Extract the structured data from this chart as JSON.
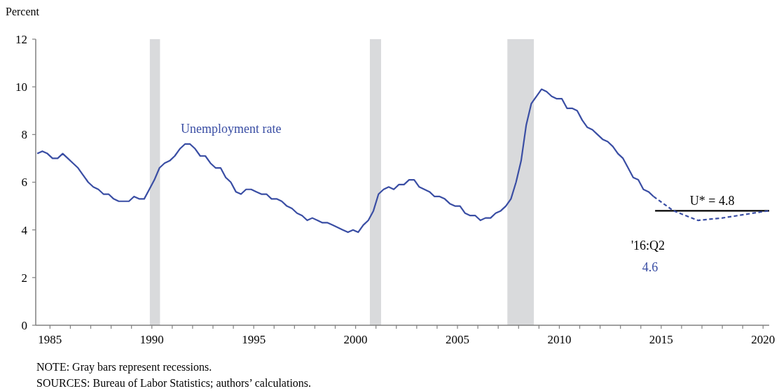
{
  "chart_data": {
    "type": "line",
    "ylabel": "Percent",
    "xlim": [
      1984.3,
      2020.3
    ],
    "ylim": [
      0,
      12
    ],
    "yticks": [
      0,
      2,
      4,
      6,
      8,
      10,
      12
    ],
    "xticks": [
      1985,
      {
        "value": 1986,
        "label": null
      },
      {
        "value": 1987,
        "label": null
      },
      {
        "value": 1988,
        "label": null
      },
      {
        "value": 1989,
        "label": null
      },
      1990,
      {
        "value": 1991,
        "label": null
      },
      {
        "value": 1992,
        "label": null
      },
      {
        "value": 1993,
        "label": null
      },
      {
        "value": 1994,
        "label": null
      },
      1995,
      {
        "value": 1996,
        "label": null
      },
      {
        "value": 1997,
        "label": null
      },
      {
        "value": 1998,
        "label": null
      },
      {
        "value": 1999,
        "label": null
      },
      2000,
      {
        "value": 2001,
        "label": null
      },
      {
        "value": 2002,
        "label": null
      },
      {
        "value": 2003,
        "label": null
      },
      {
        "value": 2004,
        "label": null
      },
      2005,
      {
        "value": 2006,
        "label": null
      },
      {
        "value": 2007,
        "label": null
      },
      {
        "value": 2008,
        "label": null
      },
      {
        "value": 2009,
        "label": null
      },
      2010,
      {
        "value": 2011,
        "label": null
      },
      {
        "value": 2012,
        "label": null
      },
      {
        "value": 2013,
        "label": null
      },
      {
        "value": 2014,
        "label": null
      },
      2015,
      {
        "value": 2016,
        "label": null
      },
      {
        "value": 2017,
        "label": null
      },
      {
        "value": 2018,
        "label": null
      },
      {
        "value": 2019,
        "label": null
      },
      2020
    ],
    "grid": false,
    "marker": "none",
    "bands": [
      {
        "axis": "x",
        "from": 1989.9,
        "to": 1990.4,
        "color": "#d9dadc"
      },
      {
        "axis": "x",
        "from": 2000.7,
        "to": 2001.25,
        "color": "#d9dadc"
      },
      {
        "axis": "x",
        "from": 2007.45,
        "to": 2008.75,
        "color": "#d9dadc"
      }
    ],
    "series": [
      {
        "name": "Unemployment rate",
        "color": "#3a4ea4",
        "line_style": "solid",
        "x": [
          1984.375,
          1984.625,
          1984.875,
          1985.125,
          1985.375,
          1985.625,
          1985.875,
          1986.125,
          1986.375,
          1986.625,
          1986.875,
          1987.125,
          1987.375,
          1987.625,
          1987.875,
          1988.125,
          1988.375,
          1988.625,
          1988.875,
          1989.125,
          1989.375,
          1989.625,
          1989.875,
          1990.125,
          1990.375,
          1990.625,
          1990.875,
          1991.125,
          1991.375,
          1991.625,
          1991.875,
          1992.125,
          1992.375,
          1992.625,
          1992.875,
          1993.125,
          1993.375,
          1993.625,
          1993.875,
          1994.125,
          1994.375,
          1994.625,
          1994.875,
          1995.125,
          1995.375,
          1995.625,
          1995.875,
          1996.125,
          1996.375,
          1996.625,
          1996.875,
          1997.125,
          1997.375,
          1997.625,
          1997.875,
          1998.125,
          1998.375,
          1998.625,
          1998.875,
          1999.125,
          1999.375,
          1999.625,
          1999.875,
          2000.125,
          2000.375,
          2000.625,
          2000.875,
          2001.125,
          2001.375,
          2001.625,
          2001.875,
          2002.125,
          2002.375,
          2002.625,
          2002.875,
          2003.125,
          2003.375,
          2003.625,
          2003.875,
          2004.125,
          2004.375,
          2004.625,
          2004.875,
          2005.125,
          2005.375,
          2005.625,
          2005.875,
          2006.125,
          2006.375,
          2006.625,
          2006.875,
          2007.125,
          2007.375,
          2007.625,
          2007.875,
          2008.125,
          2008.375,
          2008.625,
          2008.875,
          2009.125,
          2009.375,
          2009.625,
          2009.875,
          2010.125,
          2010.375,
          2010.625,
          2010.875,
          2011.125,
          2011.375,
          2011.625,
          2011.875,
          2012.125,
          2012.375,
          2012.625,
          2012.875,
          2013.125,
          2013.375,
          2013.625,
          2013.875,
          2014.125,
          2014.375,
          2014.625
        ],
        "values": [
          7.2,
          7.3,
          7.2,
          7.0,
          7.0,
          7.2,
          7.0,
          6.8,
          6.6,
          6.3,
          6.0,
          5.8,
          5.7,
          5.5,
          5.5,
          5.3,
          5.2,
          5.2,
          5.2,
          5.4,
          5.3,
          5.3,
          5.7,
          6.1,
          6.6,
          6.8,
          6.9,
          7.1,
          7.4,
          7.6,
          7.6,
          7.4,
          7.1,
          7.1,
          6.8,
          6.6,
          6.6,
          6.2,
          6.0,
          5.6,
          5.5,
          5.7,
          5.7,
          5.6,
          5.5,
          5.5,
          5.3,
          5.3,
          5.2,
          5.0,
          4.9,
          4.7,
          4.6,
          4.4,
          4.5,
          4.4,
          4.3,
          4.3,
          4.2,
          4.1,
          4.0,
          3.9,
          4.0,
          3.9,
          4.2,
          4.4,
          4.8,
          5.5,
          5.7,
          5.8,
          5.7,
          5.9,
          5.9,
          6.1,
          6.1,
          5.8,
          5.7,
          5.6,
          5.4,
          5.4,
          5.3,
          5.1,
          5.0,
          5.0,
          4.7,
          4.6,
          4.6,
          4.4,
          4.5,
          4.5,
          4.7,
          4.8,
          5.0,
          5.3,
          6.0,
          6.9,
          8.4,
          9.3,
          9.6,
          9.9,
          9.8,
          9.6,
          9.5,
          9.5,
          9.1,
          9.1,
          9.0,
          8.6,
          8.3,
          8.2,
          8.0,
          7.8,
          7.7,
          7.5,
          7.2,
          7.0,
          6.6,
          6.2,
          6.1,
          5.7,
          5.6,
          5.4
        ]
      },
      {
        "color": "#000000",
        "line_style": "solid",
        "x": [
          2014.7,
          2020.3
        ],
        "values": [
          4.8,
          4.8
        ]
      },
      {
        "color": "#3a4ea4",
        "line_style": "dashed",
        "x": [
          2014.625,
          2015.6,
          2016.8,
          2018.0,
          2020.25
        ],
        "values": [
          5.4,
          4.8,
          4.4,
          4.5,
          4.8
        ]
      }
    ],
    "annotations": [
      {
        "text": "U* = 4.8",
        "x": 2017.5,
        "y": 4.8
      },
      "'16:Q2",
      "4.6",
      "NOTE: Gray bars represent recessions.",
      "SOURCES: Bureau of Labor Statistics; authors’ calculations."
    ]
  }
}
